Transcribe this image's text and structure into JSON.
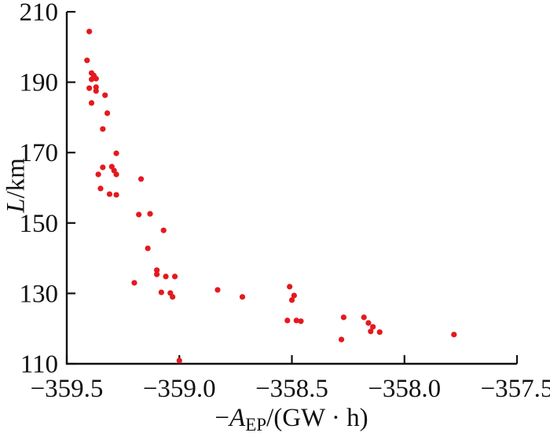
{
  "figure": {
    "background": "#ffffff",
    "xlabel_parts": {
      "minus": "−",
      "variable": "A",
      "subscript": "EP",
      "rest": "/(GW · h)"
    },
    "ylabel_parts": {
      "variable": "L",
      "rest": "/km"
    }
  },
  "chart_data": {
    "type": "scatter",
    "title": "",
    "xlabel": "−A_EP/(GW·h)",
    "ylabel": "L/km",
    "xlim": [
      -359.5,
      -357.5
    ],
    "ylim": [
      110,
      210
    ],
    "grid": false,
    "legend": null,
    "axis_color": "#111111",
    "marker_color": "#e4191f",
    "marker_radius": 3.6,
    "x_ticks": [
      -359.5,
      -359.0,
      -358.5,
      -358.0,
      -357.5
    ],
    "x_tick_labels": [
      "−359.5",
      "−359.0",
      "−358.5",
      "−358.0",
      "−357.5"
    ],
    "y_ticks": [
      110,
      130,
      150,
      170,
      190,
      210
    ],
    "y_tick_labels": [
      "110",
      "130",
      "150",
      "170",
      "190",
      "210"
    ],
    "points": [
      [
        -359.4,
        204.4
      ],
      [
        -359.41,
        196.2
      ],
      [
        -359.39,
        192.6
      ],
      [
        -359.38,
        191.9
      ],
      [
        -359.37,
        191.0
      ],
      [
        -359.39,
        190.8
      ],
      [
        -359.4,
        188.3
      ],
      [
        -359.37,
        188.6
      ],
      [
        -359.37,
        187.5
      ],
      [
        -359.33,
        186.3
      ],
      [
        -359.39,
        184.1
      ],
      [
        -359.32,
        181.2
      ],
      [
        -359.34,
        176.7
      ],
      [
        -359.28,
        169.8
      ],
      [
        -359.34,
        165.8
      ],
      [
        -359.3,
        166.0
      ],
      [
        -359.29,
        164.9
      ],
      [
        -359.36,
        163.8
      ],
      [
        -359.28,
        163.8
      ],
      [
        -359.17,
        162.5
      ],
      [
        -359.35,
        159.8
      ],
      [
        -359.31,
        158.2
      ],
      [
        -359.28,
        158.0
      ],
      [
        -359.18,
        152.4
      ],
      [
        -359.13,
        152.6
      ],
      [
        -359.07,
        147.9
      ],
      [
        -359.14,
        142.8
      ],
      [
        -359.1,
        136.6
      ],
      [
        -359.1,
        135.4
      ],
      [
        -359.06,
        134.8
      ],
      [
        -359.02,
        134.8
      ],
      [
        -359.2,
        133.0
      ],
      [
        -359.08,
        130.3
      ],
      [
        -359.04,
        130.1
      ],
      [
        -359.03,
        129.0
      ],
      [
        -358.83,
        131.0
      ],
      [
        -358.72,
        129.0
      ],
      [
        -359.0,
        110.9
      ],
      [
        -358.51,
        131.9
      ],
      [
        -358.49,
        129.4
      ],
      [
        -358.5,
        128.1
      ],
      [
        -358.52,
        122.3
      ],
      [
        -358.48,
        122.3
      ],
      [
        -358.46,
        122.1
      ],
      [
        -358.27,
        123.2
      ],
      [
        -358.28,
        116.9
      ],
      [
        -358.18,
        123.2
      ],
      [
        -358.16,
        121.6
      ],
      [
        -358.14,
        120.5
      ],
      [
        -358.15,
        119.2
      ],
      [
        -358.11,
        119.0
      ],
      [
        -357.78,
        118.3
      ]
    ]
  }
}
